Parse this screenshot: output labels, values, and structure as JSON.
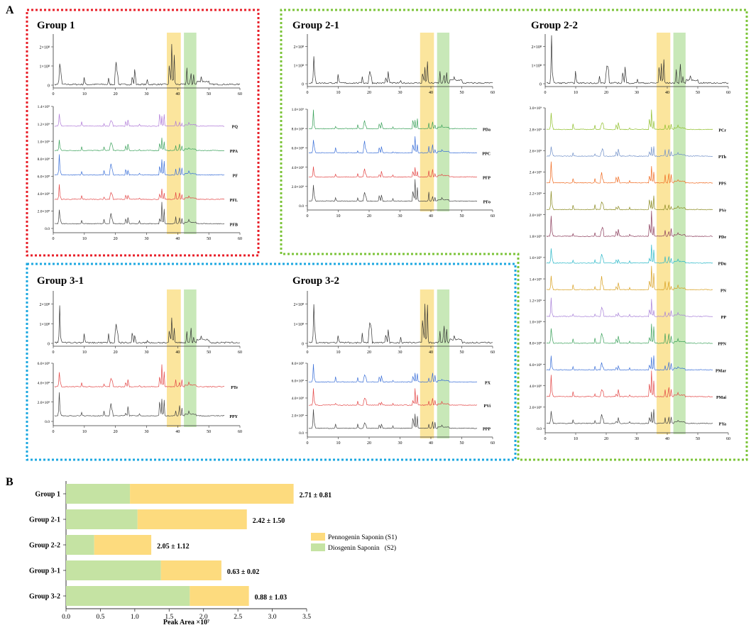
{
  "panel_a": {
    "label": "A",
    "x_ticks": [
      "0",
      "10",
      "20",
      "30",
      "40",
      "50",
      "60"
    ],
    "highlight_colors": {
      "s1": "#f9dc7c",
      "s2": "#b5e0a0"
    },
    "groups": [
      {
        "title": "Group 1",
        "border_color": "#e8202a",
        "reference_ticks": [
          "0",
          "1×10⁸",
          "2×10⁸"
        ],
        "stack_ticks": [
          "0.0",
          "2.0×10⁸",
          "4.0×10⁸",
          "6.0×10⁸",
          "8.0×10⁸",
          "1.0×10⁹",
          "1.2×10⁹",
          "1.4×10⁹"
        ],
        "samples": [
          {
            "name": "PQ",
            "color": "#b07ad8"
          },
          {
            "name": "PPA",
            "color": "#3aa15a"
          },
          {
            "name": "PF",
            "color": "#3a6fd8"
          },
          {
            "name": "PFL",
            "color": "#e34545"
          },
          {
            "name": "PFB",
            "color": "#444444"
          }
        ]
      },
      {
        "title": "Group 2-1",
        "border_color": "#7cc43a",
        "reference_ticks": [
          "0",
          "1×10⁸",
          "2×10⁸"
        ],
        "stack_ticks": [
          "0.0",
          "2.0×10⁸",
          "4.0×10⁸",
          "6.0×10⁸",
          "8.0×10⁸",
          "1.0×10⁹"
        ],
        "samples": [
          {
            "name": "PDa",
            "color": "#3aa15a"
          },
          {
            "name": "PPC",
            "color": "#3a6fd8"
          },
          {
            "name": "PFP",
            "color": "#e34545"
          },
          {
            "name": "PFo",
            "color": "#444444"
          }
        ]
      },
      {
        "title": "Group 2-2",
        "border_color": "#7cc43a",
        "reference_ticks": [
          "0",
          "1×10⁸",
          "2×10⁸"
        ],
        "stack_ticks": [
          "0.0",
          "2.0×10⁸",
          "4.0×10⁸",
          "6.0×10⁸",
          "8.0×10⁸",
          "1.0×10⁹",
          "1.2×10⁹",
          "1.4×10⁹",
          "1.6×10⁹",
          "1.8×10⁹",
          "2.0×10⁹",
          "2.2×10⁹",
          "2.4×10⁹",
          "2.6×10⁹",
          "2.8×10⁹",
          "3.0×10⁹"
        ],
        "samples": [
          {
            "name": "PCr",
            "color": "#8fbf2a"
          },
          {
            "name": "PTh",
            "color": "#6f8fc8"
          },
          {
            "name": "PPS",
            "color": "#f06a20"
          },
          {
            "name": "PVe",
            "color": "#8a8a20"
          },
          {
            "name": "PDe",
            "color": "#8a3a5a"
          },
          {
            "name": "PDu",
            "color": "#2ab8c8"
          },
          {
            "name": "PN",
            "color": "#d8a020"
          },
          {
            "name": "PP",
            "color": "#a880d8"
          },
          {
            "name": "PPN",
            "color": "#3aa15a"
          },
          {
            "name": "PMar",
            "color": "#3a6fd8"
          },
          {
            "name": "PMai",
            "color": "#e34545"
          },
          {
            "name": "PYa",
            "color": "#444444"
          }
        ]
      },
      {
        "title": "Group 3-1",
        "border_color": "#1ea8e0",
        "reference_ticks": [
          "0",
          "1×10⁸",
          "2×10⁸"
        ],
        "stack_ticks": [
          "0.0",
          "2.0×10⁸",
          "4.0×10⁸",
          "6.0×10⁸"
        ],
        "samples": [
          {
            "name": "PTe",
            "color": "#e34545"
          },
          {
            "name": "PPY",
            "color": "#444444"
          }
        ]
      },
      {
        "title": "Group 3-2",
        "border_color": "#1ea8e0",
        "reference_ticks": [
          "0",
          "1×10⁸",
          "2×10⁸"
        ],
        "stack_ticks": [
          "0.0",
          "2.0×10⁸",
          "4.0×10⁸",
          "6.0×10⁸",
          "8.0×10⁸"
        ],
        "samples": [
          {
            "name": "PX",
            "color": "#3a6fd8"
          },
          {
            "name": "PVi",
            "color": "#e34545"
          },
          {
            "name": "PPP",
            "color": "#444444"
          }
        ]
      }
    ]
  },
  "chart_data": {
    "type": "bar",
    "panel_label": "B",
    "orientation": "horizontal",
    "stacked": true,
    "categories": [
      "Group 1",
      "Group 2-1",
      "Group 2-2",
      "Group 3-1",
      "Group 3-2"
    ],
    "series": [
      {
        "name": "Diosgenin Saponin   (S2)",
        "color": "#c5e3a3",
        "values": [
          0.93,
          1.04,
          0.41,
          1.38,
          1.8
        ]
      },
      {
        "name": "Pennogenin Saponin (S1)",
        "color": "#fddb7e",
        "values": [
          2.38,
          1.59,
          0.83,
          0.88,
          0.86
        ]
      }
    ],
    "annotations": [
      "2.71 ± 0.81",
      "2.42 ± 1.50",
      "2.05 ± 1.12",
      "0.63 ± 0.02",
      "0.88 ± 1.03"
    ],
    "xlabel": "Peak Area ×10⁷",
    "xlim": [
      0,
      3.5
    ],
    "x_ticks": [
      "0.0",
      "0.5",
      "1.0",
      "1.5",
      "2.0",
      "2.5",
      "3.0",
      "3.5"
    ],
    "legend_order": [
      "Pennogenin Saponin (S1)",
      "Diosgenin Saponin   (S2)"
    ],
    "legend_position": "right"
  }
}
